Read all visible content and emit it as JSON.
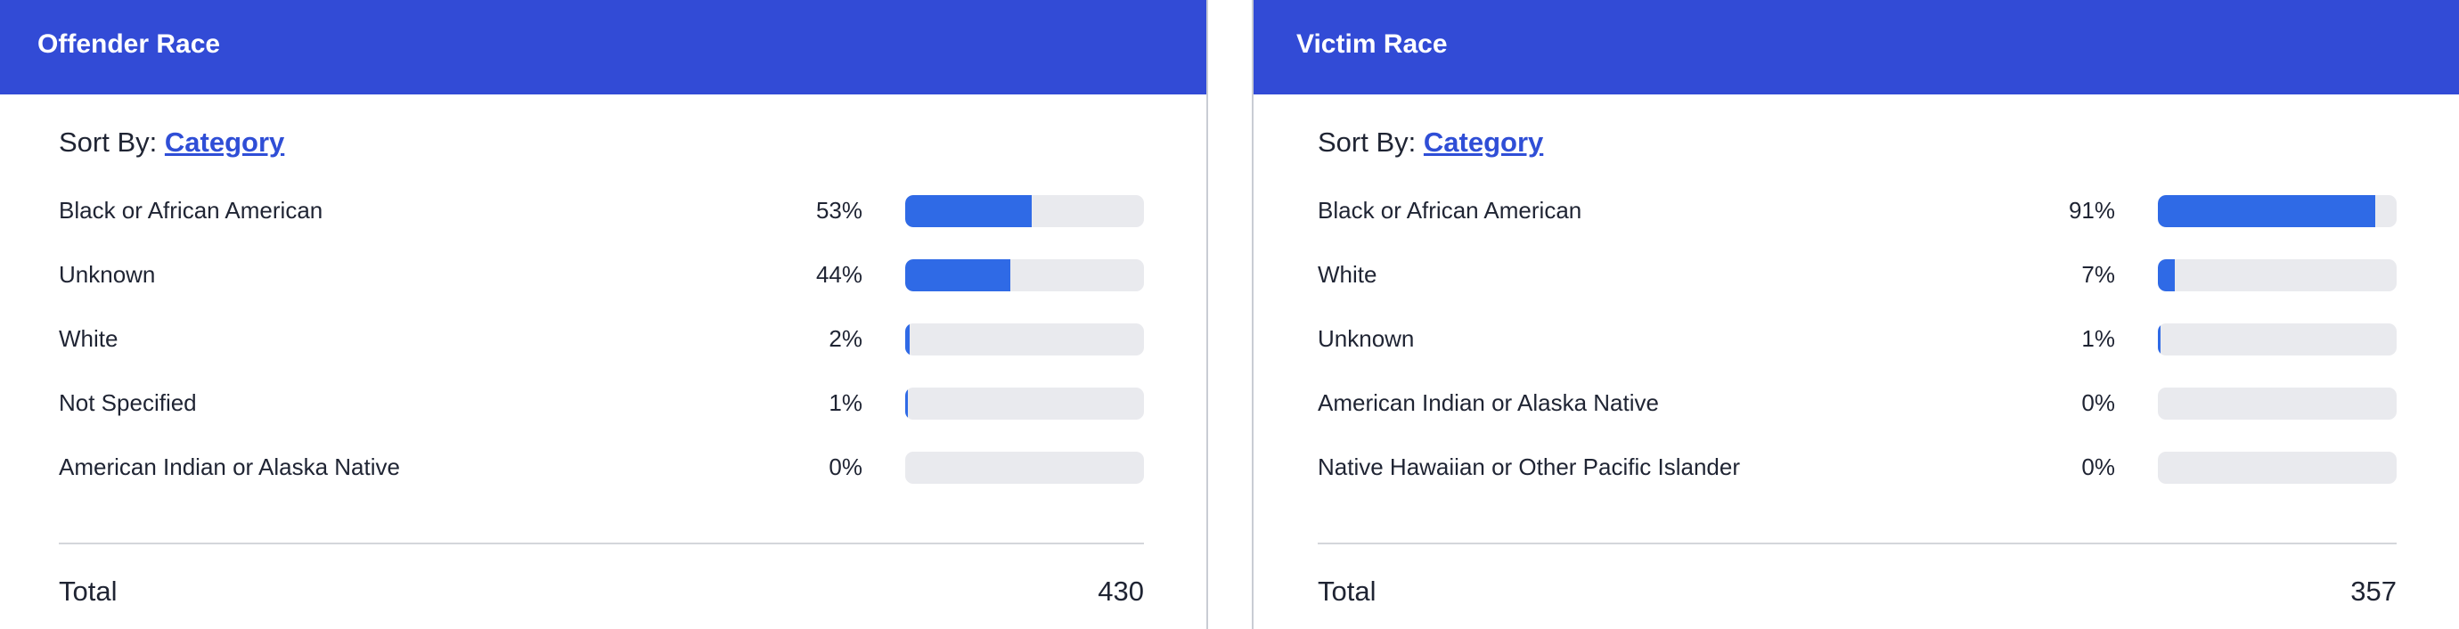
{
  "panels": [
    {
      "title": "Offender Race",
      "sort_label": "Sort By:",
      "sort_value": "Category",
      "rows": [
        {
          "label": "Black or African American",
          "value": 53,
          "value_label": "53%"
        },
        {
          "label": "Unknown",
          "value": 44,
          "value_label": "44%"
        },
        {
          "label": "White",
          "value": 2,
          "value_label": "2%"
        },
        {
          "label": "Not Specified",
          "value": 1,
          "value_label": "1%"
        },
        {
          "label": "American Indian or Alaska Native",
          "value": 0,
          "value_label": "0%"
        }
      ],
      "total_label": "Total",
      "total": 430
    },
    {
      "title": "Victim Race",
      "sort_label": "Sort By:",
      "sort_value": "Category",
      "rows": [
        {
          "label": "Black or African American",
          "value": 91,
          "value_label": "91%"
        },
        {
          "label": "White",
          "value": 7,
          "value_label": "7%"
        },
        {
          "label": "Unknown",
          "value": 1,
          "value_label": "1%"
        },
        {
          "label": "American Indian or Alaska Native",
          "value": 0,
          "value_label": "0%"
        },
        {
          "label": "Native Hawaiian or Other Pacific Islander",
          "value": 0,
          "value_label": "0%"
        }
      ],
      "total_label": "Total",
      "total": 357
    }
  ]
}
